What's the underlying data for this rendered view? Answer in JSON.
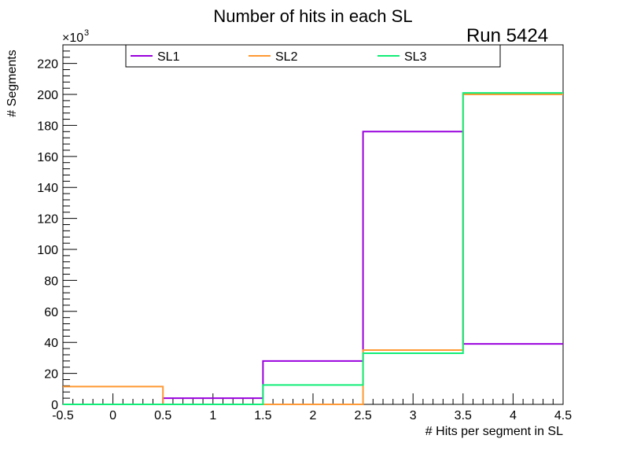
{
  "chart_data": {
    "type": "histogram-step",
    "title": "Number of hits in each SL",
    "annotation": "Run 5424",
    "xlabel": "# Hits per segment in SL",
    "ylabel": "# Segments",
    "y_multiplier_label": "×10",
    "y_multiplier_exponent": "3",
    "xlim": [
      -0.5,
      4.5
    ],
    "ylim": [
      0,
      232
    ],
    "x_ticks": [
      "-0.5",
      "0",
      "0.5",
      "1",
      "1.5",
      "2",
      "2.5",
      "3",
      "3.5",
      "4",
      "4.5"
    ],
    "y_ticks": [
      "0",
      "20",
      "40",
      "60",
      "80",
      "100",
      "120",
      "140",
      "160",
      "180",
      "200",
      "220"
    ],
    "bin_edges": [
      -0.5,
      0.5,
      1.5,
      2.5,
      3.5,
      4.5
    ],
    "legend_position": "top",
    "series": [
      {
        "name": "SL1",
        "color": "#9900dd",
        "values": [
          0,
          4,
          28,
          176,
          39
        ]
      },
      {
        "name": "SL2",
        "color": "#ff9933",
        "values": [
          11.5,
          0,
          0,
          35,
          200
        ]
      },
      {
        "name": "SL3",
        "color": "#11ee77",
        "values": [
          0,
          0,
          12.5,
          33,
          201
        ]
      }
    ]
  }
}
